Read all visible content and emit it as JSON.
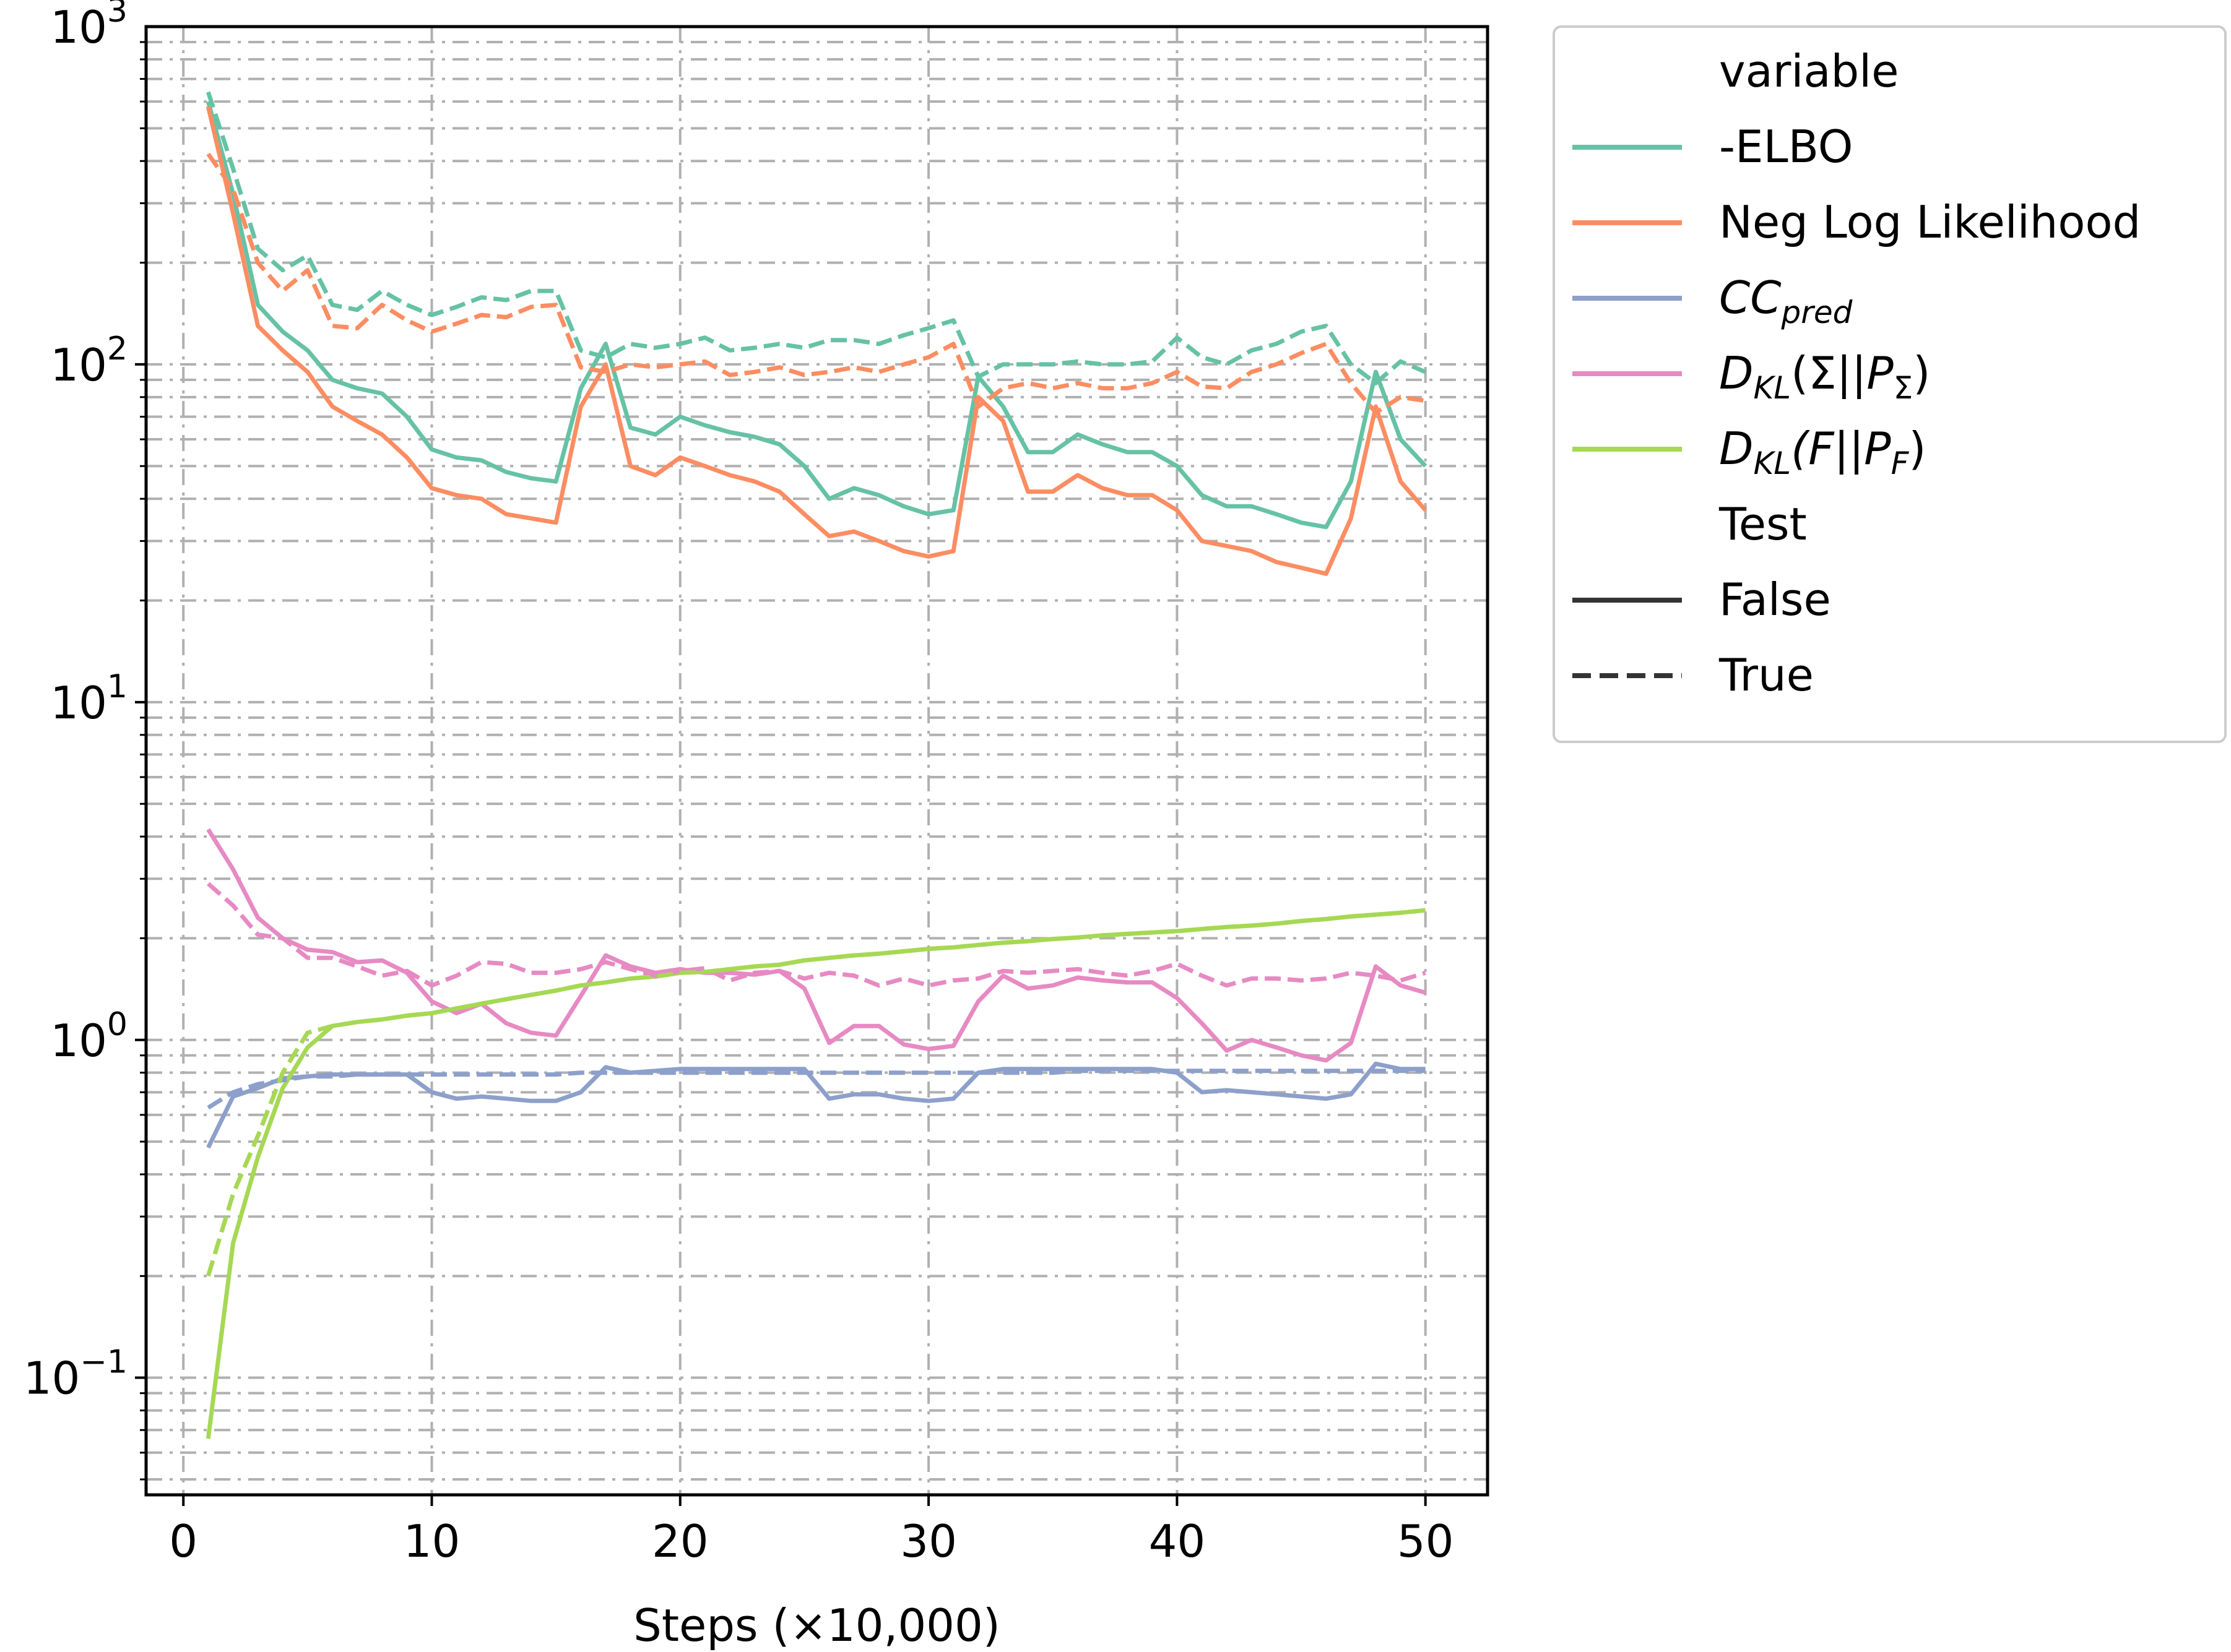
{
  "chart_data": {
    "type": "line",
    "xlabel": "Steps (×10,000)",
    "ylabel": "",
    "yscale": "log",
    "xlim": [
      -1.5,
      52.5
    ],
    "ylim": [
      0.045,
      1000
    ],
    "xticks": [
      0,
      10,
      20,
      30,
      40,
      50
    ],
    "xtick_labels": [
      "0",
      "10",
      "20",
      "30",
      "40",
      "50"
    ],
    "yticks": [
      0.1,
      1,
      10,
      100,
      1000
    ],
    "ytick_labels": [
      {
        "base": "10",
        "exp": "−1"
      },
      {
        "base": "10",
        "exp": "0"
      },
      {
        "base": "10",
        "exp": "1"
      },
      {
        "base": "10",
        "exp": "2"
      },
      {
        "base": "10",
        "exp": "3"
      }
    ],
    "grid": {
      "major": true,
      "minor": true,
      "style": "dash-dot",
      "color": "#b0b0b0"
    },
    "legend": {
      "placement": "outside-right-top",
      "hue_title": "variable",
      "style_title": "Test",
      "hue_entries": [
        {
          "name": "-ELBO",
          "color": "#66c2a5"
        },
        {
          "name": "Neg Log Likelihood",
          "color": "#fc8d62"
        },
        {
          "base": "CC",
          "sub": "pred",
          "color": "#8da0cb"
        },
        {
          "base": "D",
          "sub": "KL",
          "mid": "(Σ||P",
          "sub2": "Σ",
          "end": ")",
          "color": "#e78ac3"
        },
        {
          "base": "D",
          "sub": "KL",
          "mid": "(F||P",
          "sub2": "F",
          "end": ")",
          "color": "#a6d854"
        }
      ],
      "style_entries": [
        {
          "name": "False",
          "dash": "solid"
        },
        {
          "name": "True",
          "dash": "dashed"
        }
      ]
    },
    "x": [
      1,
      2,
      3,
      4,
      5,
      6,
      7,
      8,
      9,
      10,
      11,
      12,
      13,
      14,
      15,
      16,
      17,
      18,
      19,
      20,
      21,
      22,
      23,
      24,
      25,
      26,
      27,
      28,
      29,
      30,
      31,
      32,
      33,
      34,
      35,
      36,
      37,
      38,
      39,
      40,
      41,
      42,
      43,
      44,
      45,
      46,
      47,
      48,
      49,
      50
    ],
    "series": [
      {
        "variable": "-ELBO",
        "test": "False",
        "color": "#66c2a5",
        "dash": "solid",
        "values": [
          600,
          320,
          150,
          125,
          110,
          90,
          85,
          82,
          70,
          56,
          53,
          52,
          48,
          46,
          45,
          85,
          115,
          65,
          62,
          70,
          66,
          63,
          61,
          58,
          50,
          40,
          43,
          41,
          38,
          36,
          37,
          92,
          75,
          55,
          55,
          62,
          58,
          55,
          55,
          50,
          41,
          38,
          38,
          36,
          34,
          33,
          45,
          95,
          60,
          50
        ]
      },
      {
        "variable": "Neg Log Likelihood",
        "test": "False",
        "color": "#fc8d62",
        "dash": "solid",
        "values": [
          580,
          280,
          130,
          110,
          95,
          75,
          68,
          62,
          53,
          43,
          41,
          40,
          36,
          35,
          34,
          75,
          100,
          50,
          47,
          53,
          50,
          47,
          45,
          42,
          36,
          31,
          32,
          30,
          28,
          27,
          28,
          80,
          68,
          42,
          42,
          47,
          43,
          41,
          41,
          37,
          30,
          29,
          28,
          26,
          25,
          24,
          35,
          75,
          45,
          37
        ]
      },
      {
        "variable": "CC_pred",
        "test": "False",
        "color": "#8da0cb",
        "dash": "solid",
        "values": [
          0.48,
          0.68,
          0.72,
          0.77,
          0.78,
          0.79,
          0.79,
          0.79,
          0.79,
          0.7,
          0.67,
          0.68,
          0.67,
          0.66,
          0.66,
          0.7,
          0.83,
          0.8,
          0.81,
          0.82,
          0.82,
          0.82,
          0.82,
          0.82,
          0.82,
          0.67,
          0.69,
          0.69,
          0.67,
          0.66,
          0.67,
          0.8,
          0.82,
          0.82,
          0.82,
          0.82,
          0.82,
          0.82,
          0.82,
          0.8,
          0.7,
          0.71,
          0.7,
          0.69,
          0.68,
          0.67,
          0.69,
          0.85,
          0.82,
          0.82
        ]
      },
      {
        "variable": "D_KL(Σ||P_Σ)",
        "test": "False",
        "color": "#e78ac3",
        "dash": "solid",
        "values": [
          4.2,
          3.2,
          2.3,
          2.0,
          1.85,
          1.82,
          1.7,
          1.72,
          1.58,
          1.3,
          1.2,
          1.28,
          1.12,
          1.05,
          1.03,
          1.35,
          1.78,
          1.65,
          1.58,
          1.62,
          1.58,
          1.58,
          1.56,
          1.6,
          1.42,
          0.98,
          1.1,
          1.1,
          0.97,
          0.94,
          0.96,
          1.3,
          1.55,
          1.42,
          1.45,
          1.53,
          1.5,
          1.48,
          1.48,
          1.33,
          1.12,
          0.93,
          1.0,
          0.95,
          0.9,
          0.87,
          0.98,
          1.65,
          1.45,
          1.38
        ]
      },
      {
        "variable": "D_KL(F||P_F)",
        "test": "False",
        "color": "#a6d854",
        "dash": "solid",
        "values": [
          0.066,
          0.25,
          0.45,
          0.72,
          0.95,
          1.1,
          1.13,
          1.15,
          1.18,
          1.2,
          1.24,
          1.28,
          1.32,
          1.36,
          1.4,
          1.45,
          1.48,
          1.52,
          1.54,
          1.58,
          1.59,
          1.62,
          1.65,
          1.67,
          1.72,
          1.75,
          1.78,
          1.8,
          1.83,
          1.86,
          1.88,
          1.91,
          1.94,
          1.96,
          1.99,
          2.01,
          2.04,
          2.06,
          2.08,
          2.1,
          2.13,
          2.16,
          2.18,
          2.21,
          2.25,
          2.28,
          2.32,
          2.35,
          2.38,
          2.42
        ]
      },
      {
        "variable": "-ELBO",
        "test": "True",
        "color": "#66c2a5",
        "dash": "dashed",
        "values": [
          640,
          380,
          220,
          190,
          210,
          150,
          145,
          165,
          150,
          140,
          148,
          158,
          155,
          165,
          165,
          110,
          105,
          115,
          112,
          115,
          120,
          110,
          112,
          115,
          112,
          118,
          118,
          115,
          122,
          128,
          135,
          92,
          100,
          100,
          100,
          102,
          100,
          100,
          102,
          120,
          105,
          100,
          110,
          115,
          125,
          130,
          100,
          88,
          102,
          95
        ]
      },
      {
        "variable": "Neg Log Likelihood",
        "test": "True",
        "color": "#fc8d62",
        "dash": "dashed",
        "values": [
          420,
          330,
          200,
          165,
          190,
          130,
          128,
          150,
          135,
          125,
          132,
          140,
          138,
          148,
          150,
          98,
          95,
          100,
          98,
          100,
          102,
          93,
          95,
          98,
          93,
          95,
          98,
          95,
          100,
          105,
          115,
          75,
          85,
          88,
          85,
          88,
          85,
          85,
          88,
          95,
          86,
          85,
          95,
          100,
          108,
          115,
          88,
          72,
          80,
          78
        ]
      },
      {
        "variable": "CC_pred",
        "test": "True",
        "color": "#8da0cb",
        "dash": "dashed",
        "values": [
          0.63,
          0.7,
          0.74,
          0.76,
          0.78,
          0.78,
          0.79,
          0.79,
          0.79,
          0.79,
          0.79,
          0.79,
          0.79,
          0.79,
          0.79,
          0.8,
          0.8,
          0.8,
          0.8,
          0.8,
          0.8,
          0.8,
          0.8,
          0.8,
          0.8,
          0.8,
          0.8,
          0.8,
          0.8,
          0.8,
          0.8,
          0.8,
          0.8,
          0.8,
          0.8,
          0.81,
          0.81,
          0.81,
          0.81,
          0.81,
          0.81,
          0.81,
          0.81,
          0.81,
          0.81,
          0.81,
          0.81,
          0.81,
          0.81,
          0.81
        ]
      },
      {
        "variable": "D_KL(Σ||P_Σ)",
        "test": "True",
        "color": "#e78ac3",
        "dash": "dashed",
        "values": [
          2.9,
          2.5,
          2.05,
          2.0,
          1.75,
          1.75,
          1.65,
          1.55,
          1.6,
          1.45,
          1.55,
          1.7,
          1.68,
          1.58,
          1.58,
          1.62,
          1.7,
          1.62,
          1.55,
          1.6,
          1.63,
          1.5,
          1.58,
          1.6,
          1.52,
          1.58,
          1.55,
          1.45,
          1.52,
          1.45,
          1.5,
          1.52,
          1.6,
          1.58,
          1.6,
          1.62,
          1.58,
          1.55,
          1.6,
          1.68,
          1.55,
          1.45,
          1.52,
          1.52,
          1.5,
          1.52,
          1.58,
          1.55,
          1.5,
          1.58
        ]
      },
      {
        "variable": "D_KL(F||P_F)",
        "test": "True",
        "color": "#a6d854",
        "dash": "dashed",
        "values": [
          0.2,
          0.35,
          0.52,
          0.8,
          1.05,
          1.1,
          1.13,
          1.15,
          1.18,
          1.2,
          1.24,
          1.28,
          1.32,
          1.36,
          1.4,
          1.45,
          1.48,
          1.52,
          1.54,
          1.58,
          1.59,
          1.62,
          1.65,
          1.67,
          1.72,
          1.75,
          1.78,
          1.8,
          1.83,
          1.86,
          1.88,
          1.91,
          1.94,
          1.96,
          1.99,
          2.01,
          2.04,
          2.06,
          2.08,
          2.1,
          2.13,
          2.16,
          2.18,
          2.21,
          2.25,
          2.28,
          2.32,
          2.35,
          2.38,
          2.42
        ]
      }
    ]
  }
}
